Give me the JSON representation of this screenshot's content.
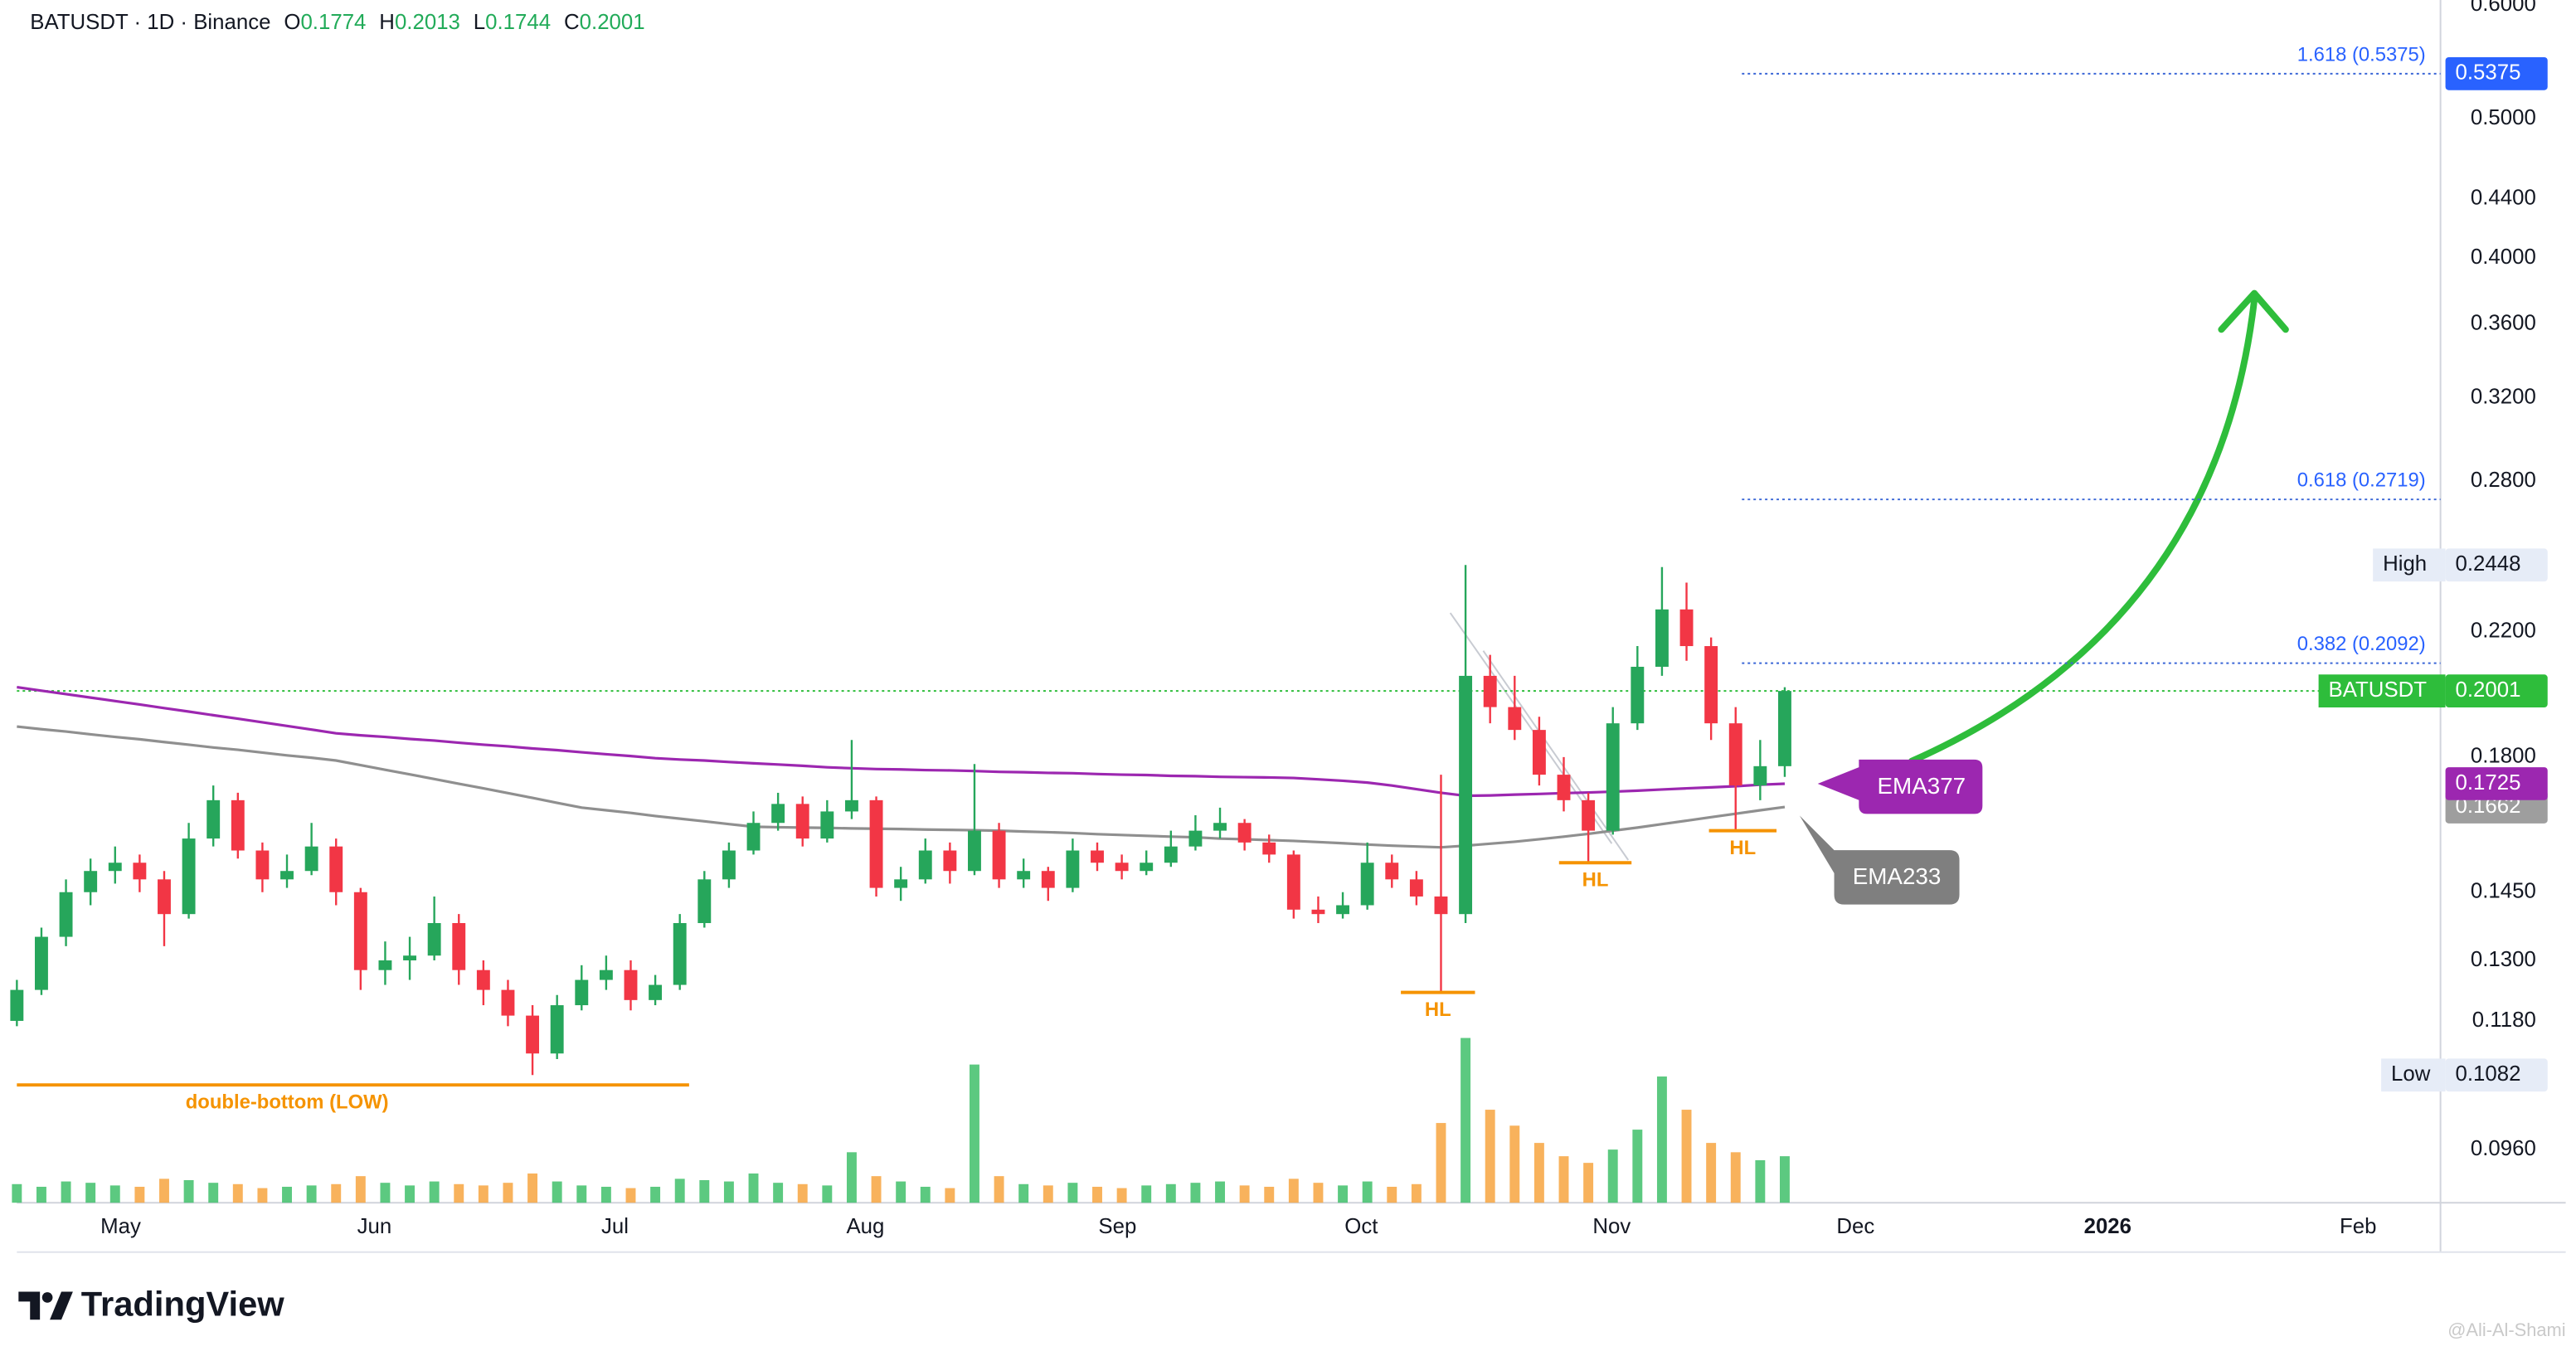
{
  "chart_data": {
    "type": "candlestick",
    "header": {
      "symbol": "BATUSDT · 1D · Binance",
      "ohlc_labels": [
        "O",
        "H",
        "L",
        "C"
      ]
    },
    "ohlc": [
      [
        0.118,
        0.126,
        0.117,
        0.124
      ],
      [
        0.124,
        0.137,
        0.123,
        0.135
      ],
      [
        0.135,
        0.148,
        0.133,
        0.145
      ],
      [
        0.145,
        0.153,
        0.142,
        0.15
      ],
      [
        0.15,
        0.156,
        0.147,
        0.152
      ],
      [
        0.152,
        0.154,
        0.145,
        0.148
      ],
      [
        0.148,
        0.15,
        0.133,
        0.14
      ],
      [
        0.14,
        0.162,
        0.139,
        0.158
      ],
      [
        0.158,
        0.172,
        0.156,
        0.168
      ],
      [
        0.168,
        0.17,
        0.153,
        0.155
      ],
      [
        0.155,
        0.157,
        0.145,
        0.148
      ],
      [
        0.148,
        0.154,
        0.146,
        0.15
      ],
      [
        0.15,
        0.162,
        0.149,
        0.156
      ],
      [
        0.156,
        0.158,
        0.142,
        0.145
      ],
      [
        0.145,
        0.146,
        0.124,
        0.128
      ],
      [
        0.128,
        0.134,
        0.125,
        0.13
      ],
      [
        0.13,
        0.135,
        0.126,
        0.131
      ],
      [
        0.131,
        0.144,
        0.13,
        0.138
      ],
      [
        0.138,
        0.14,
        0.125,
        0.128
      ],
      [
        0.128,
        0.13,
        0.121,
        0.124
      ],
      [
        0.124,
        0.126,
        0.117,
        0.119
      ],
      [
        0.119,
        0.121,
        0.1082,
        0.112
      ],
      [
        0.112,
        0.123,
        0.111,
        0.121
      ],
      [
        0.121,
        0.129,
        0.12,
        0.126
      ],
      [
        0.126,
        0.131,
        0.124,
        0.128
      ],
      [
        0.128,
        0.13,
        0.12,
        0.122
      ],
      [
        0.122,
        0.127,
        0.121,
        0.125
      ],
      [
        0.125,
        0.14,
        0.124,
        0.138
      ],
      [
        0.138,
        0.15,
        0.137,
        0.148
      ],
      [
        0.148,
        0.157,
        0.146,
        0.155
      ],
      [
        0.155,
        0.165,
        0.154,
        0.162
      ],
      [
        0.162,
        0.17,
        0.16,
        0.167
      ],
      [
        0.167,
        0.169,
        0.156,
        0.158
      ],
      [
        0.158,
        0.168,
        0.157,
        0.165
      ],
      [
        0.165,
        0.185,
        0.163,
        0.168
      ],
      [
        0.168,
        0.169,
        0.144,
        0.146
      ],
      [
        0.146,
        0.151,
        0.143,
        0.148
      ],
      [
        0.148,
        0.158,
        0.147,
        0.155
      ],
      [
        0.155,
        0.157,
        0.147,
        0.15
      ],
      [
        0.15,
        0.178,
        0.149,
        0.16
      ],
      [
        0.16,
        0.162,
        0.146,
        0.148
      ],
      [
        0.148,
        0.153,
        0.146,
        0.15
      ],
      [
        0.15,
        0.151,
        0.143,
        0.146
      ],
      [
        0.146,
        0.158,
        0.145,
        0.155
      ],
      [
        0.155,
        0.157,
        0.15,
        0.152
      ],
      [
        0.152,
        0.154,
        0.148,
        0.15
      ],
      [
        0.15,
        0.155,
        0.149,
        0.152
      ],
      [
        0.152,
        0.16,
        0.151,
        0.156
      ],
      [
        0.156,
        0.164,
        0.155,
        0.16
      ],
      [
        0.16,
        0.166,
        0.158,
        0.162
      ],
      [
        0.162,
        0.163,
        0.155,
        0.157
      ],
      [
        0.157,
        0.159,
        0.152,
        0.154
      ],
      [
        0.154,
        0.155,
        0.139,
        0.141
      ],
      [
        0.141,
        0.144,
        0.138,
        0.14
      ],
      [
        0.14,
        0.145,
        0.139,
        0.142
      ],
      [
        0.142,
        0.157,
        0.141,
        0.152
      ],
      [
        0.152,
        0.154,
        0.146,
        0.148
      ],
      [
        0.148,
        0.15,
        0.142,
        0.144
      ],
      [
        0.144,
        0.175,
        0.1235,
        0.14
      ],
      [
        0.14,
        0.2448,
        0.138,
        0.205
      ],
      [
        0.205,
        0.212,
        0.19,
        0.195
      ],
      [
        0.195,
        0.205,
        0.185,
        0.188
      ],
      [
        0.188,
        0.192,
        0.172,
        0.175
      ],
      [
        0.175,
        0.18,
        0.165,
        0.168
      ],
      [
        0.168,
        0.17,
        0.152,
        0.16
      ],
      [
        0.16,
        0.195,
        0.159,
        0.19
      ],
      [
        0.19,
        0.215,
        0.188,
        0.208
      ],
      [
        0.208,
        0.244,
        0.205,
        0.228
      ],
      [
        0.228,
        0.238,
        0.21,
        0.215
      ],
      [
        0.215,
        0.218,
        0.185,
        0.19
      ],
      [
        0.19,
        0.195,
        0.16,
        0.172
      ],
      [
        0.172,
        0.185,
        0.168,
        0.1774
      ],
      [
        0.1774,
        0.2013,
        0.1744,
        0.2001
      ]
    ],
    "up_color": "#26a65b",
    "down_color": "#f23645",
    "volume": [
      14,
      12,
      16,
      15,
      13,
      12,
      18,
      17,
      15,
      14,
      11,
      12,
      13,
      14,
      20,
      15,
      13,
      16,
      14,
      13,
      15,
      22,
      16,
      13,
      12,
      11,
      12,
      18,
      17,
      16,
      22,
      15,
      14,
      13,
      38,
      20,
      16,
      12,
      11,
      104,
      20,
      14,
      13,
      15,
      12,
      11,
      13,
      14,
      15,
      16,
      13,
      12,
      18,
      15,
      13,
      16,
      12,
      14,
      60,
      124,
      70,
      58,
      45,
      35,
      30,
      40,
      55,
      95,
      70,
      45,
      38,
      32,
      35
    ],
    "volume_up_color": "#3fbf6a",
    "volume_down_color": "#f7a540",
    "x_labels": [
      "May",
      "Jun",
      "Jul",
      "Aug",
      "Sep",
      "Oct",
      "Nov",
      "Dec",
      "2026",
      "Feb"
    ],
    "ylim": [
      0.0882,
      0.6048
    ],
    "log_y": true,
    "grid": false,
    "yticks": [
      {
        "value": 0.6,
        "label": "0.6000"
      },
      {
        "value": 0.5,
        "label": "0.5000"
      },
      {
        "value": 0.44,
        "label": "0.4400"
      },
      {
        "value": 0.4,
        "label": "0.4000"
      },
      {
        "value": 0.36,
        "label": "0.3600"
      },
      {
        "value": 0.32,
        "label": "0.3200"
      },
      {
        "value": 0.28,
        "label": "0.2800"
      },
      {
        "value": 0.22,
        "label": "0.2200"
      },
      {
        "value": 0.18,
        "label": "0.1800"
      },
      {
        "value": 0.145,
        "label": "0.1450"
      },
      {
        "value": 0.13,
        "label": "0.1300"
      },
      {
        "value": 0.118,
        "label": "0.1180"
      },
      {
        "value": 0.096,
        "label": "0.0960"
      }
    ],
    "series": [
      {
        "name": "EMA377",
        "color": "#9c27b0",
        "values": [
          0.2013,
          0.2002,
          0.1991,
          0.198,
          0.1969,
          0.1958,
          0.1947,
          0.1936,
          0.1925,
          0.1914,
          0.1903,
          0.1892,
          0.1881,
          0.187,
          0.1864,
          0.1859,
          0.1853,
          0.1848,
          0.1842,
          0.1836,
          0.1831,
          0.1825,
          0.182,
          0.1814,
          0.1808,
          0.1803,
          0.1797,
          0.1793,
          0.179,
          0.1786,
          0.1782,
          0.1779,
          0.1775,
          0.1771,
          0.1768,
          0.1766,
          0.1765,
          0.1763,
          0.1762,
          0.176,
          0.1758,
          0.1757,
          0.1755,
          0.1754,
          0.1752,
          0.175,
          0.1749,
          0.1747,
          0.1746,
          0.1744,
          0.1743,
          0.1742,
          0.1741,
          0.1737,
          0.1733,
          0.1728,
          0.172,
          0.171,
          0.17,
          0.1692,
          0.1693,
          0.1695,
          0.1697,
          0.1699,
          0.1701,
          0.1703,
          0.1706,
          0.1709,
          0.1712,
          0.1715,
          0.1718,
          0.1722,
          0.1725
        ]
      },
      {
        "name": "EMA233",
        "color": "#8f8f8f",
        "values": [
          0.189,
          0.1882,
          0.1875,
          0.1867,
          0.1859,
          0.1852,
          0.1844,
          0.1836,
          0.1828,
          0.1821,
          0.1813,
          0.1805,
          0.1798,
          0.179,
          0.1777,
          0.1764,
          0.1751,
          0.1738,
          0.1725,
          0.1712,
          0.1699,
          0.1686,
          0.1673,
          0.166,
          0.1653,
          0.1646,
          0.1638,
          0.1631,
          0.1624,
          0.1617,
          0.161,
          0.1609,
          0.1608,
          0.1607,
          0.1606,
          0.1605,
          0.1604,
          0.1603,
          0.1602,
          0.1601,
          0.16,
          0.1598,
          0.1596,
          0.1594,
          0.1591,
          0.1589,
          0.1587,
          0.1585,
          0.1583,
          0.158,
          0.1578,
          0.1576,
          0.1574,
          0.1571,
          0.1568,
          0.1565,
          0.1562,
          0.156,
          0.1558,
          0.1562,
          0.1567,
          0.1572,
          0.1578,
          0.1585,
          0.1592,
          0.16,
          0.1608,
          0.1617,
          0.1626,
          0.1635,
          0.1644,
          0.1653,
          0.1662
        ]
      }
    ],
    "fib_levels": [
      {
        "label": "1.618 (0.5375)",
        "value": 0.5375
      },
      {
        "label": "0.618 (0.2719)",
        "value": 0.2719
      },
      {
        "label": "0.382 (0.2092)",
        "value": 0.2092
      }
    ],
    "high_label": "High",
    "low_label": "Low",
    "last_price_label": "BATUSDT",
    "annotations": {
      "double_bottom": "double-bottom (LOW)",
      "hl": [
        "HL",
        "HL",
        "HL"
      ]
    }
  },
  "branding": "TradingView",
  "watermark": "@Ali-Al-Shami"
}
